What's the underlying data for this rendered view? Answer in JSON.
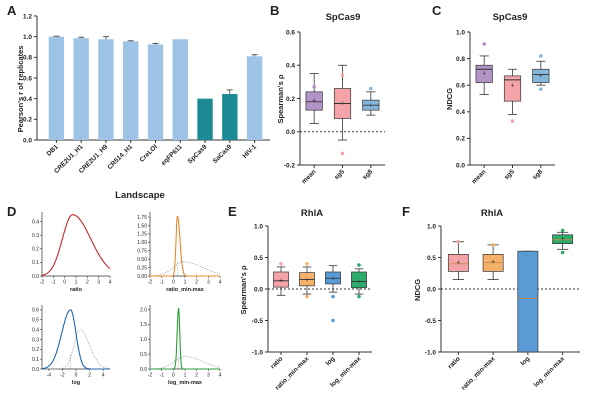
{
  "chart_data": [
    {
      "panel": "A",
      "type": "bar",
      "ylabel": "Pearson's r of replicates",
      "xlabel": "Landscape",
      "ylim": [
        0,
        1.2
      ],
      "yticks": [
        "0.0",
        "0.2",
        "0.4",
        "0.6",
        "0.8",
        "1.0",
        "1.2"
      ],
      "categories": [
        "DB1",
        "CRE2U1_H1",
        "CRE2U1_H9",
        "CR514_H1",
        "CreLOI",
        "eqFP611",
        "SpCas9",
        "SaCas9",
        "HIV-1"
      ],
      "values": [
        1.0,
        0.985,
        0.975,
        0.955,
        0.925,
        0.975,
        0.4,
        0.445,
        0.81
      ],
      "errors": [
        0.005,
        0.01,
        0.025,
        0.005,
        0.01,
        0.0,
        0.0,
        0.04,
        0.015
      ],
      "colors": [
        "#9dc3e6",
        "#9dc3e6",
        "#9dc3e6",
        "#9dc3e6",
        "#9dc3e6",
        "#9dc3e6",
        "#1c8a94",
        "#1c8a94",
        "#9dc3e6"
      ]
    },
    {
      "panel": "B",
      "type": "box",
      "title": "SpCas9",
      "ylabel": "Spearman's ρ",
      "ylim": [
        -0.2,
        0.6
      ],
      "yticks": [
        "-0.2",
        "0.0",
        "0.2",
        "0.4",
        "0.6"
      ],
      "categories": [
        "mean",
        "sg5",
        "sg8"
      ],
      "colors": [
        "#b294c7",
        "#f4a3a8",
        "#85b6dc"
      ],
      "boxes": [
        {
          "whisker_low": 0.05,
          "q1": 0.13,
          "median": 0.18,
          "q3": 0.24,
          "whisker_high": 0.35,
          "mean": 0.19,
          "outliers": [
            0.27
          ]
        },
        {
          "whisker_low": -0.05,
          "q1": 0.08,
          "median": 0.17,
          "q3": 0.26,
          "whisker_high": 0.4,
          "mean": 0.17,
          "outliers": [
            0.34,
            -0.13
          ]
        },
        {
          "whisker_low": 0.1,
          "q1": 0.13,
          "median": 0.16,
          "q3": 0.19,
          "whisker_high": 0.24,
          "mean": 0.16,
          "outliers": [
            0.26
          ]
        }
      ]
    },
    {
      "panel": "C",
      "type": "box",
      "title": "SpCas9",
      "ylabel": "NDCG",
      "ylim": [
        0,
        1.0
      ],
      "yticks": [
        "0.0",
        "0.2",
        "0.4",
        "0.6",
        "0.8",
        "1.0"
      ],
      "categories": [
        "mean",
        "sg5",
        "sg8"
      ],
      "colors": [
        "#b294c7",
        "#f4a3a8",
        "#85b6dc"
      ],
      "boxes": [
        {
          "whisker_low": 0.53,
          "q1": 0.62,
          "median": 0.72,
          "q3": 0.75,
          "whisker_high": 0.82,
          "mean": 0.69,
          "outliers": [
            0.91
          ]
        },
        {
          "whisker_low": 0.38,
          "q1": 0.48,
          "median": 0.64,
          "q3": 0.67,
          "whisker_high": 0.72,
          "mean": 0.6,
          "outliers": [
            0.33
          ]
        },
        {
          "whisker_low": 0.6,
          "q1": 0.62,
          "median": 0.68,
          "q3": 0.72,
          "whisker_high": 0.78,
          "mean": 0.67,
          "outliers": [
            0.57,
            0.82
          ]
        }
      ]
    },
    {
      "panel": "D",
      "type": "density",
      "subplots": [
        {
          "label": "ratio",
          "color": "#c0282d",
          "xticks": [
            "-2",
            "-1",
            "0",
            "1",
            "2",
            "3",
            "4"
          ],
          "xlim": [
            -2,
            4
          ],
          "yticks": [
            "0.0",
            "0.1",
            "0.2",
            "0.3",
            "0.4"
          ],
          "ylim": [
            0,
            0.47
          ],
          "curve": {
            "mu": 0.7,
            "sl": 0.9,
            "sr": 1.6,
            "peak": 0.45
          },
          "dotted": null
        },
        {
          "label": "ratio_min-max",
          "color": "#e68a2e",
          "xticks": [
            "-2",
            "-1",
            "0",
            "1",
            "2",
            "3",
            "4"
          ],
          "xlim": [
            -2,
            4
          ],
          "yticks": [
            "0.00",
            "0.25",
            "0.50",
            "0.75",
            "1.00",
            "1.25",
            "1.50",
            "1.75"
          ],
          "ylim": [
            0,
            1.9
          ],
          "curve": {
            "mu": 0.35,
            "sl": 0.12,
            "sr": 0.22,
            "peak": 1.78
          },
          "dotted": {
            "mu": 0.9,
            "sl": 0.9,
            "sr": 1.6,
            "peak": 0.42
          }
        },
        {
          "label": "log",
          "color": "#2166ac",
          "xticks": [
            "-4",
            "-2",
            "0",
            "2",
            "4"
          ],
          "xlim": [
            -5,
            5
          ],
          "yticks": [
            "0.0",
            "0.1",
            "0.2",
            "0.3",
            "0.4",
            "0.5",
            "0.6"
          ],
          "ylim": [
            0,
            0.65
          ],
          "curve": {
            "mu": -0.8,
            "sl": 1.3,
            "sr": 0.8,
            "peak": 0.6
          },
          "dotted": {
            "mu": 0.6,
            "sl": 0.9,
            "sr": 1.4,
            "peak": 0.4
          }
        },
        {
          "label": "log_min-max",
          "color": "#2a9d3a",
          "xticks": [
            "-2",
            "-1",
            "0",
            "1",
            "2",
            "3",
            "4"
          ],
          "xlim": [
            -2,
            4
          ],
          "yticks": [
            "0.0",
            "0.5",
            "1.0",
            "1.5",
            "2.0"
          ],
          "ylim": [
            0,
            2.15
          ],
          "curve": {
            "mu": 0.45,
            "sl": 0.12,
            "sr": 0.1,
            "peak": 2.05
          },
          "dotted": {
            "mu": 1.0,
            "sl": 0.9,
            "sr": 1.5,
            "peak": 0.42
          }
        }
      ]
    },
    {
      "panel": "E",
      "type": "box",
      "title": "RhlA",
      "ylabel": "Spearman's ρ",
      "ylim": [
        -1.0,
        1.0
      ],
      "yticks": [
        "-1.0",
        "-0.5",
        "0.0",
        "0.5",
        "1.0"
      ],
      "categories": [
        "ratio",
        "ratio_min-max",
        "log",
        "log_min-max"
      ],
      "colors": [
        "#f4a3a8",
        "#f5b06a",
        "#5b9bd5",
        "#2eaa6b"
      ],
      "boxes": [
        {
          "whisker_low": -0.1,
          "q1": 0.03,
          "median": 0.13,
          "q3": 0.27,
          "whisker_high": 0.35,
          "mean": 0.14,
          "outliers": [
            0.4
          ]
        },
        {
          "whisker_low": -0.08,
          "q1": 0.05,
          "median": 0.15,
          "q3": 0.26,
          "whisker_high": 0.35,
          "mean": 0.15,
          "outliers": [
            0.4,
            -0.12
          ]
        },
        {
          "whisker_low": -0.05,
          "q1": 0.08,
          "median": 0.17,
          "q3": 0.27,
          "whisker_high": 0.37,
          "mean": 0.17,
          "outliers": [
            -0.12,
            -0.5
          ]
        },
        {
          "whisker_low": -0.08,
          "q1": 0.02,
          "median": 0.12,
          "q3": 0.27,
          "whisker_high": 0.32,
          "mean": 0.12,
          "outliers": [
            0.38,
            -0.12
          ]
        }
      ]
    },
    {
      "panel": "F",
      "type": "box",
      "title": "RhlA",
      "ylabel": "NDCG",
      "ylim": [
        -1.0,
        1.0
      ],
      "yticks": [
        "-1.0",
        "-0.5",
        "0.0",
        "0.5",
        "1.0"
      ],
      "categories": [
        "ratio",
        "ratio_min-max",
        "log",
        "log_min-max"
      ],
      "colors": [
        "#f4a3a8",
        "#f5b06a",
        "#5b9bd5",
        "#2eaa6b"
      ],
      "boxes": [
        {
          "whisker_low": 0.15,
          "q1": 0.28,
          "median": 0.4,
          "q3": 0.55,
          "whisker_high": 0.75,
          "mean": 0.42,
          "outliers": [
            0.75
          ]
        },
        {
          "whisker_low": 0.15,
          "q1": 0.28,
          "median": 0.42,
          "q3": 0.55,
          "whisker_high": 0.7,
          "mean": 0.43,
          "outliers": [
            0.7
          ]
        },
        {
          "whisker_low": -1.0,
          "q1": -1.0,
          "median": -0.15,
          "q3": 0.6,
          "whisker_high": 0.6,
          "mean": null,
          "outliers": []
        },
        {
          "whisker_low": 0.63,
          "q1": 0.72,
          "median": 0.78,
          "q3": 0.86,
          "whisker_high": 0.9,
          "mean": 0.8,
          "outliers": [
            0.58,
            0.93
          ]
        }
      ]
    }
  ]
}
